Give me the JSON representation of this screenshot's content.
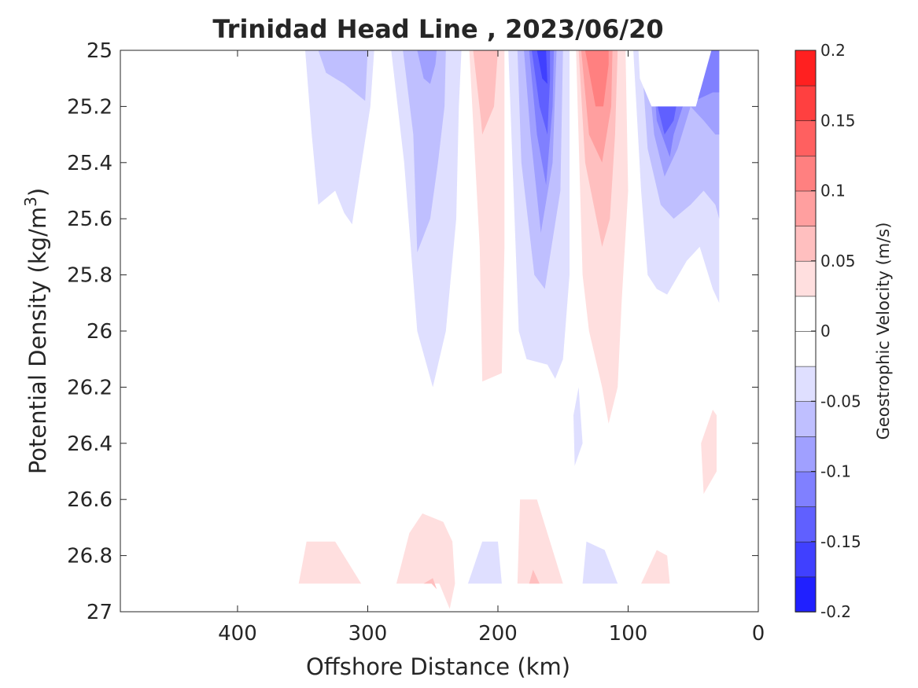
{
  "chart_data": {
    "type": "contour",
    "title": "Trinidad Head Line , 2023/06/20",
    "xlabel": "Offshore Distance (km)",
    "ylabel_main": "Potential Density (kg/m",
    "ylabel_sup": "3",
    "ylabel_tail": ")",
    "xlim": [
      490,
      0
    ],
    "ylim": [
      25,
      27
    ],
    "x_reversed": true,
    "y_reversed": true,
    "xticks": [
      400,
      300,
      200,
      100,
      0
    ],
    "yticks": [
      25,
      25.2,
      25.4,
      25.6,
      25.8,
      26,
      26.2,
      26.4,
      26.6,
      26.8,
      27
    ],
    "grid": false,
    "colorbar": {
      "label": "Geostrophic Velocity (m/s)",
      "min": -0.2,
      "max": 0.2,
      "ticks": [
        -0.2,
        -0.15,
        -0.1,
        -0.05,
        0,
        0.05,
        0.1,
        0.15,
        0.2
      ],
      "levels": [
        -0.2,
        -0.175,
        -0.15,
        -0.125,
        -0.1,
        -0.075,
        -0.05,
        -0.025,
        0,
        0.025,
        0.05,
        0.075,
        0.1,
        0.125,
        0.15,
        0.175,
        0.2
      ],
      "colors": [
        "#0000ff",
        "#2020ff",
        "#4040ff",
        "#6060ff",
        "#8080ff",
        "#a0a0ff",
        "#bfbfff",
        "#dfdfff",
        "#ffffff",
        "#ffffff",
        "#ffdfdf",
        "#ffbfbf",
        "#ff9f9f",
        "#ff8080",
        "#ff6060",
        "#ff4040",
        "#ff2020",
        "#ff0000"
      ]
    },
    "regions": [
      {
        "level": -0.025,
        "points": [
          [
            348,
            25
          ],
          [
            343,
            25.3
          ],
          [
            338,
            25.55
          ],
          [
            325,
            25.5
          ],
          [
            318,
            25.58
          ],
          [
            312,
            25.62
          ],
          [
            298,
            25.2
          ],
          [
            295,
            25
          ]
        ]
      },
      {
        "level": -0.05,
        "points": [
          [
            338,
            25
          ],
          [
            332,
            25.08
          ],
          [
            318,
            25.12
          ],
          [
            302,
            25.18
          ],
          [
            300,
            25
          ]
        ]
      },
      {
        "level": -0.025,
        "points": [
          [
            282,
            25
          ],
          [
            272,
            25.4
          ],
          [
            262,
            26.0
          ],
          [
            250,
            26.2
          ],
          [
            240,
            26.0
          ],
          [
            232,
            25.6
          ],
          [
            230,
            25.2
          ],
          [
            228,
            25
          ]
        ]
      },
      {
        "level": -0.05,
        "points": [
          [
            273,
            25
          ],
          [
            265,
            25.3
          ],
          [
            262,
            25.72
          ],
          [
            252,
            25.6
          ],
          [
            246,
            25.4
          ],
          [
            241,
            25.2
          ],
          [
            240,
            25
          ]
        ]
      },
      {
        "level": -0.075,
        "points": [
          [
            262,
            25
          ],
          [
            257,
            25.1
          ],
          [
            252,
            25.12
          ],
          [
            248,
            25.05
          ],
          [
            247,
            25
          ]
        ]
      },
      {
        "level": 0.025,
        "points": [
          [
            222,
            25
          ],
          [
            214,
            25.7
          ],
          [
            212,
            26.18
          ],
          [
            197,
            26.15
          ],
          [
            195,
            25.7
          ],
          [
            195,
            25
          ]
        ]
      },
      {
        "level": 0.05,
        "points": [
          [
            219,
            25
          ],
          [
            213,
            25.25
          ],
          [
            212,
            25.3
          ],
          [
            203,
            25.2
          ],
          [
            200,
            25
          ]
        ]
      },
      {
        "level": -0.025,
        "points": [
          [
            192,
            25
          ],
          [
            188,
            25.5
          ],
          [
            184,
            26.0
          ],
          [
            178,
            26.1
          ],
          [
            162,
            26.12
          ],
          [
            156,
            26.17
          ],
          [
            150,
            26.1
          ],
          [
            145,
            25.8
          ],
          [
            145,
            25
          ]
        ]
      },
      {
        "level": -0.05,
        "points": [
          [
            185,
            25
          ],
          [
            182,
            25.4
          ],
          [
            172,
            25.8
          ],
          [
            164,
            25.85
          ],
          [
            152,
            25.5
          ],
          [
            150,
            25
          ]
        ]
      },
      {
        "level": -0.075,
        "points": [
          [
            180,
            25
          ],
          [
            175,
            25.3
          ],
          [
            167,
            25.65
          ],
          [
            158,
            25.4
          ],
          [
            155,
            25
          ]
        ]
      },
      {
        "level": -0.1,
        "points": [
          [
            176,
            25
          ],
          [
            170,
            25.3
          ],
          [
            163,
            25.48
          ],
          [
            158,
            25.2
          ],
          [
            157,
            25
          ]
        ]
      },
      {
        "level": -0.125,
        "points": [
          [
            174,
            25
          ],
          [
            168,
            25.2
          ],
          [
            162,
            25.3
          ],
          [
            160,
            25.1
          ],
          [
            160,
            25
          ]
        ]
      },
      {
        "level": -0.15,
        "points": [
          [
            170,
            25
          ],
          [
            166,
            25.1
          ],
          [
            162,
            25.12
          ],
          [
            163,
            25
          ]
        ]
      },
      {
        "level": 0.025,
        "points": [
          [
            140,
            25
          ],
          [
            135,
            25.8
          ],
          [
            130,
            26.0
          ],
          [
            120,
            26.2
          ],
          [
            115,
            26.33
          ],
          [
            108,
            26.2
          ],
          [
            105,
            25.9
          ],
          [
            100,
            25.5
          ],
          [
            102,
            25
          ]
        ]
      },
      {
        "level": 0.05,
        "points": [
          [
            138,
            25
          ],
          [
            133,
            25.4
          ],
          [
            120,
            25.7
          ],
          [
            114,
            25.6
          ],
          [
            110,
            25.3
          ],
          [
            108,
            25
          ]
        ]
      },
      {
        "level": 0.075,
        "points": [
          [
            136,
            25
          ],
          [
            130,
            25.3
          ],
          [
            120,
            25.4
          ],
          [
            113,
            25.2
          ],
          [
            112,
            25
          ]
        ]
      },
      {
        "level": 0.1,
        "points": [
          [
            133,
            25
          ],
          [
            125,
            25.2
          ],
          [
            119,
            25.2
          ],
          [
            115,
            25.05
          ],
          [
            115,
            25
          ]
        ]
      },
      {
        "level": -0.025,
        "points": [
          [
            96,
            25
          ],
          [
            90,
            25.5
          ],
          [
            85,
            25.8
          ],
          [
            78,
            25.85
          ],
          [
            70,
            25.87
          ],
          [
            55,
            25.75
          ],
          [
            45,
            25.7
          ],
          [
            35,
            25.85
          ],
          [
            30,
            25.9
          ],
          [
            30,
            25
          ]
        ]
      },
      {
        "level": -0.05,
        "points": [
          [
            90,
            25
          ],
          [
            85,
            25.35
          ],
          [
            75,
            25.55
          ],
          [
            65,
            25.6
          ],
          [
            52,
            25.55
          ],
          [
            42,
            25.5
          ],
          [
            33,
            25.55
          ],
          [
            30,
            25.6
          ],
          [
            30,
            25
          ]
        ]
      },
      {
        "level": -0.075,
        "points": [
          [
            86,
            25
          ],
          [
            80,
            25.3
          ],
          [
            72,
            25.45
          ],
          [
            62,
            25.35
          ],
          [
            52,
            25.2
          ],
          [
            42,
            25.25
          ],
          [
            33,
            25.3
          ],
          [
            30,
            25.3
          ],
          [
            30,
            25
          ]
        ]
      },
      {
        "level": -0.1,
        "points": [
          [
            82,
            25
          ],
          [
            78,
            25.25
          ],
          [
            68,
            25.38
          ],
          [
            65,
            25.3
          ],
          [
            58,
            25.2
          ],
          [
            35,
            25.15
          ],
          [
            30,
            25.15
          ],
          [
            30,
            25
          ]
        ]
      },
      {
        "level": -0.125,
        "points": [
          [
            80,
            25.15
          ],
          [
            72,
            25.3
          ],
          [
            65,
            25.25
          ],
          [
            63,
            25.2
          ]
        ]
      },
      {
        "level": 0,
        "points": [
          [
            92,
            25
          ],
          [
            91,
            25.1
          ],
          [
            82,
            25.2
          ],
          [
            48,
            25.2
          ],
          [
            36,
            25
          ]
        ]
      },
      {
        "level": -0.025,
        "points": [
          [
            138,
            26.2
          ],
          [
            135,
            26.4
          ],
          [
            141,
            26.48
          ],
          [
            142,
            26.3
          ]
        ]
      },
      {
        "level": 0.025,
        "points": [
          [
            353,
            26.9
          ],
          [
            347,
            26.75
          ],
          [
            325,
            26.75
          ],
          [
            305,
            26.9
          ]
        ]
      },
      {
        "level": 0.025,
        "points": [
          [
            278,
            26.9
          ],
          [
            268,
            26.72
          ],
          [
            258,
            26.65
          ],
          [
            242,
            26.68
          ],
          [
            235,
            26.75
          ],
          [
            233,
            26.9
          ],
          [
            237,
            26.99
          ],
          [
            245,
            26.9
          ]
        ]
      },
      {
        "level": 0.05,
        "points": [
          [
            257,
            26.9
          ],
          [
            250,
            26.88
          ],
          [
            247,
            26.92
          ],
          [
            251,
            26.9
          ]
        ]
      },
      {
        "level": -0.025,
        "points": [
          [
            223,
            26.9
          ],
          [
            212,
            26.75
          ],
          [
            200,
            26.75
          ],
          [
            197,
            26.9
          ]
        ]
      },
      {
        "level": 0.025,
        "points": [
          [
            185,
            26.9
          ],
          [
            183,
            26.6
          ],
          [
            170,
            26.6
          ],
          [
            160,
            26.75
          ],
          [
            150,
            26.9
          ]
        ]
      },
      {
        "level": 0.05,
        "points": [
          [
            176,
            26.9
          ],
          [
            173,
            26.85
          ],
          [
            168,
            26.9
          ]
        ]
      },
      {
        "level": -0.025,
        "points": [
          [
            135,
            26.9
          ],
          [
            132,
            26.75
          ],
          [
            118,
            26.78
          ],
          [
            108,
            26.9
          ]
        ]
      },
      {
        "level": 0.025,
        "points": [
          [
            90,
            26.9
          ],
          [
            78,
            26.78
          ],
          [
            70,
            26.8
          ],
          [
            68,
            26.9
          ]
        ]
      },
      {
        "level": 0.025,
        "points": [
          [
            42,
            26.58
          ],
          [
            44,
            26.4
          ],
          [
            35,
            26.28
          ],
          [
            32,
            26.3
          ],
          [
            32,
            26.5
          ]
        ]
      }
    ]
  }
}
